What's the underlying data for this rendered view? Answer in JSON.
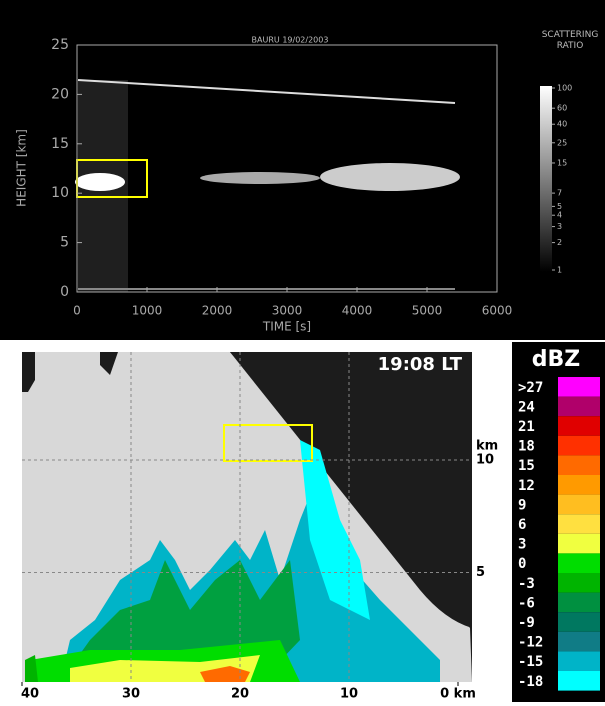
{
  "chart_data": [
    {
      "type": "heatmap",
      "title": "BAURU 19/02/2003",
      "xlabel": "TIME [s]",
      "ylabel": "HEIGHT [km]",
      "xlim": [
        0,
        6000
      ],
      "xticks": [
        0,
        1000,
        2000,
        3000,
        4000,
        5000,
        6000
      ],
      "ylim": [
        0,
        25
      ],
      "yticks": [
        0,
        5,
        10,
        15,
        20,
        25
      ],
      "colorbar_title": "SCATTERING RATIO",
      "colorbar_ticks": [
        100,
        60,
        40,
        25,
        15,
        7,
        5,
        4,
        3,
        2,
        1
      ]
    },
    {
      "type": "heatmap",
      "title": "19:08 LT",
      "ylabel": "km",
      "xlim": [
        40,
        0
      ],
      "xticks": [
        40,
        30,
        20,
        10,
        {
          "value": 0,
          "label": "0 km"
        }
      ],
      "ylim": [
        0,
        14.8
      ],
      "yticks": [
        5,
        10
      ],
      "colorbar_title": "dBZ",
      "colorbar_ticks": [
        {
          "value": 27,
          "label": ">27"
        },
        24,
        21,
        18,
        15,
        12,
        9,
        6,
        3,
        0,
        -3,
        -6,
        -9,
        -12,
        -15,
        -18
      ],
      "colorbar_colors": [
        "#ff00ff",
        "#b0006a",
        "#e00000",
        "#ff3000",
        "#ff6a00",
        "#ff9a00",
        "#ffbe20",
        "#ffe040",
        "#f0ff40",
        "#00dd00",
        "#00b400",
        "#009040",
        "#007860",
        "#107c86",
        "#00b4c8",
        "#00ffff"
      ]
    }
  ]
}
